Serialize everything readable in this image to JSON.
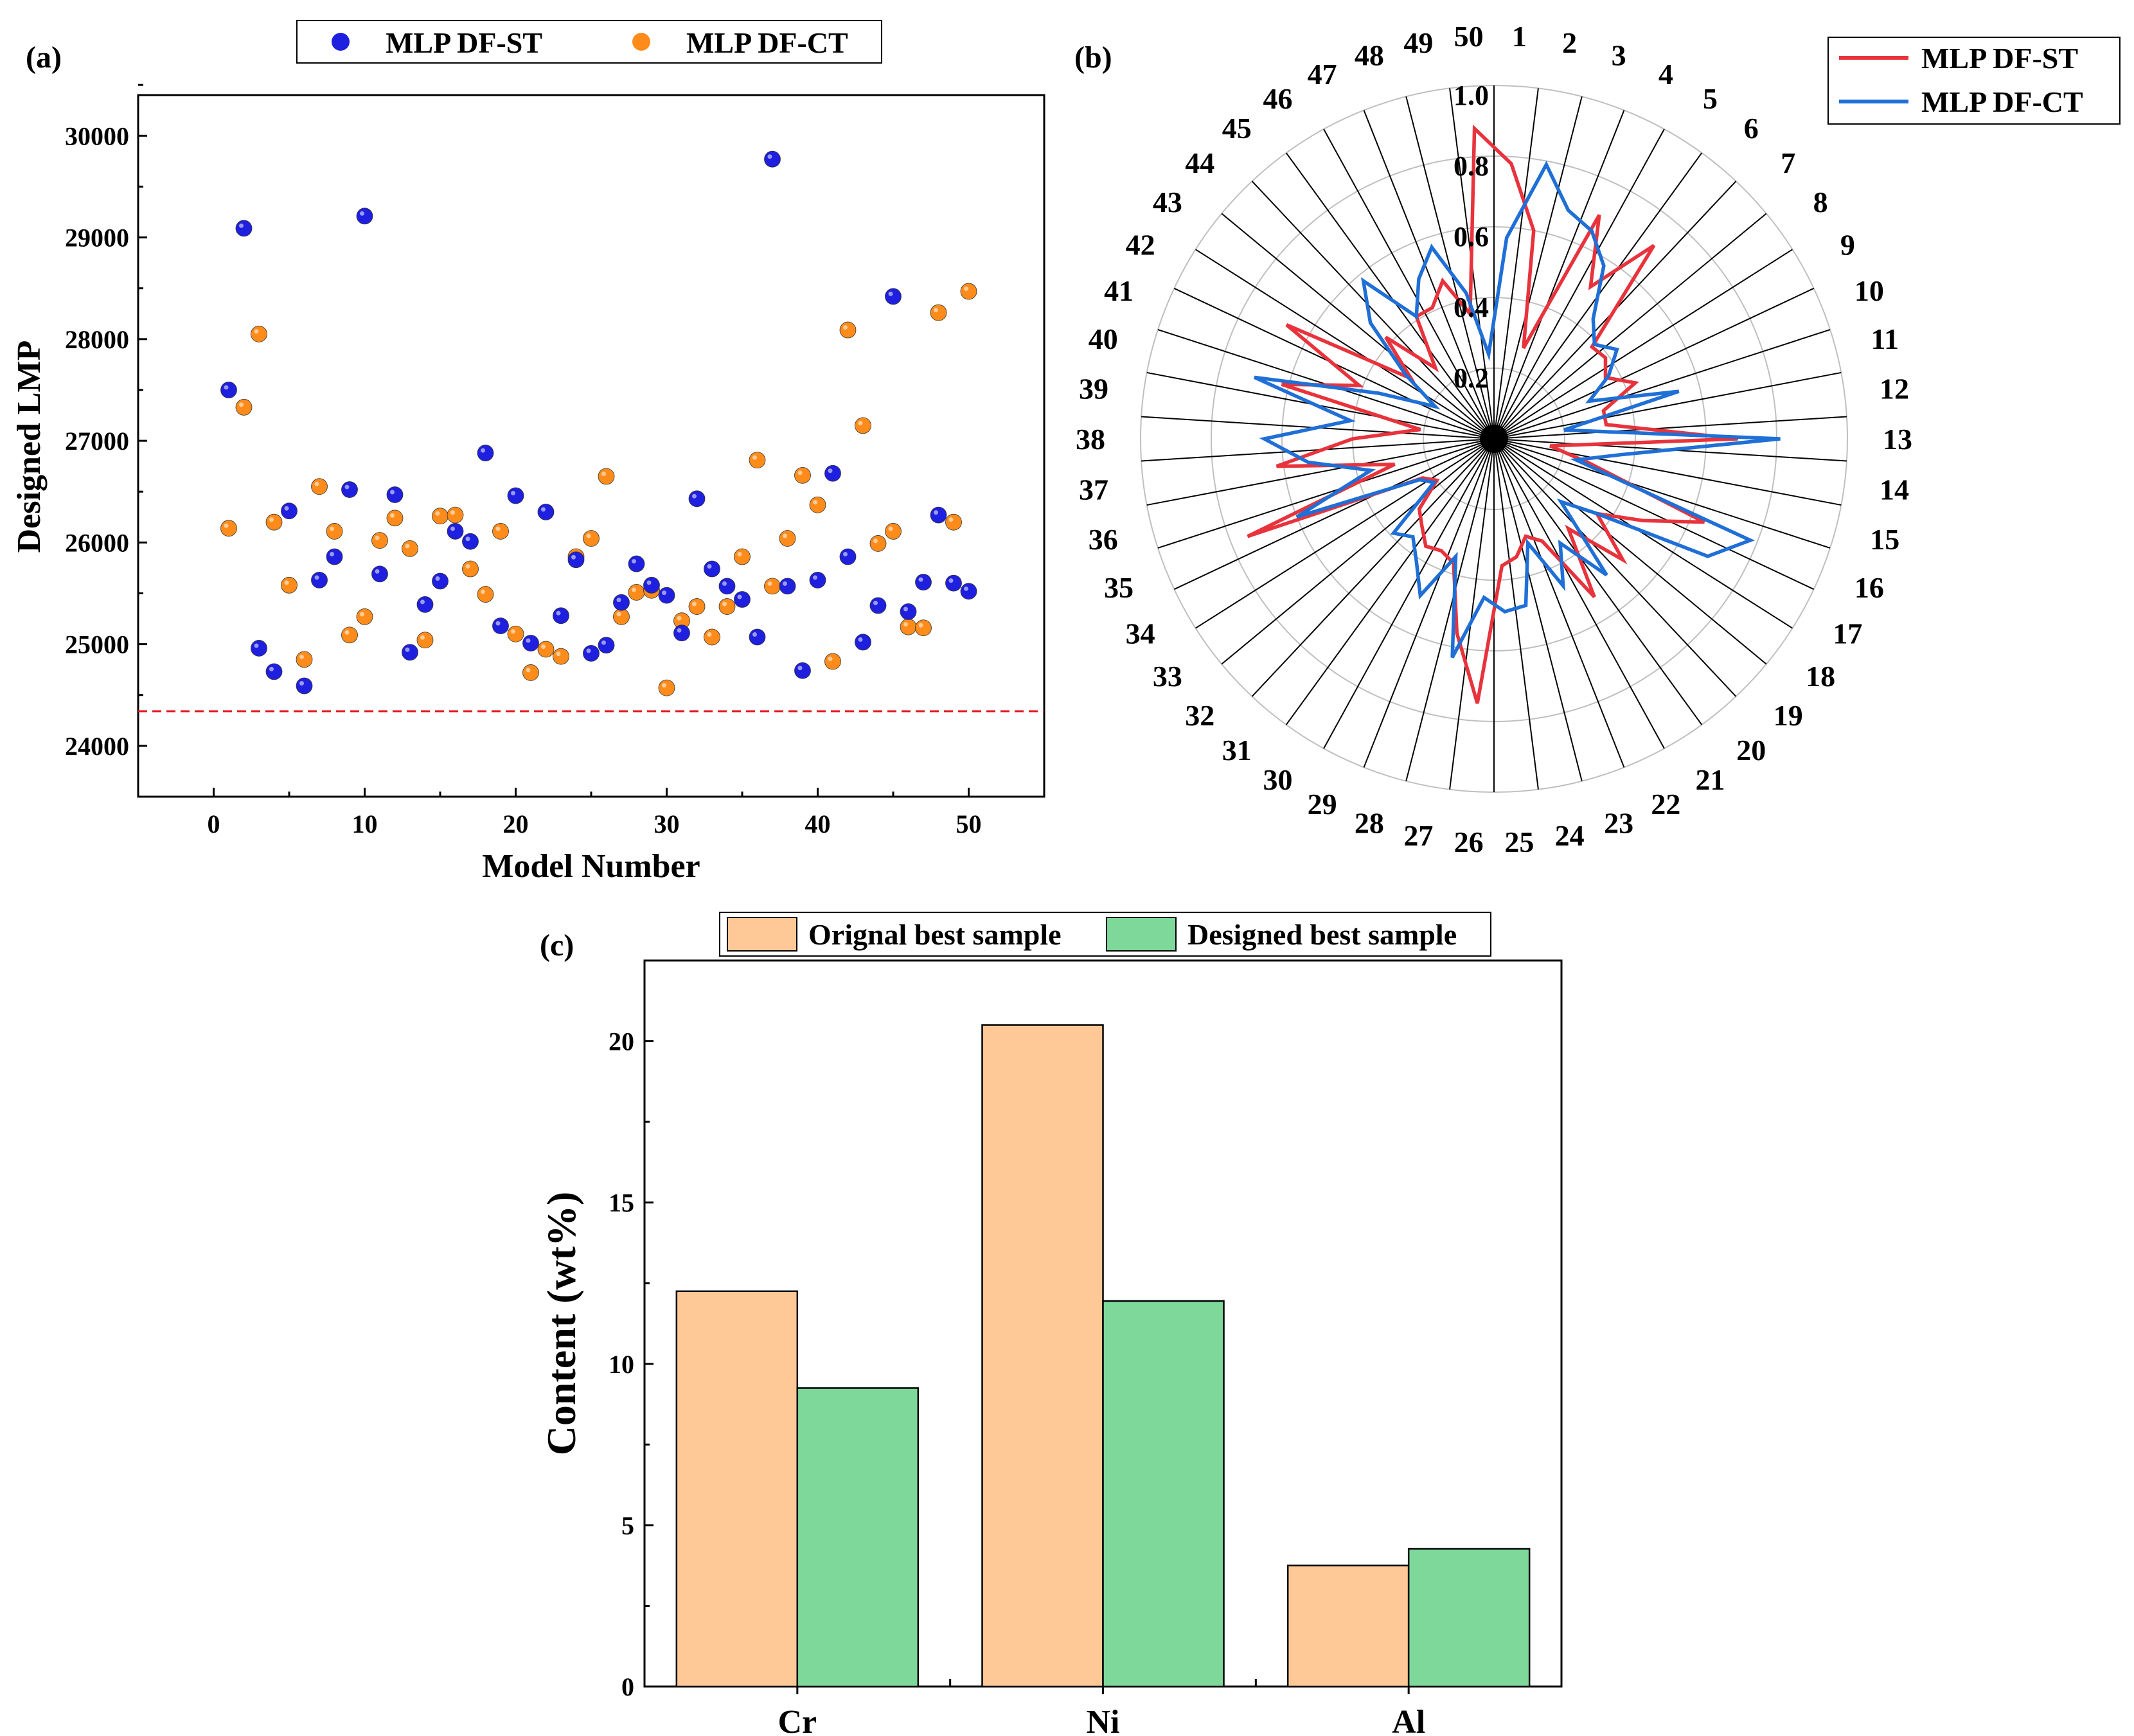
{
  "figure": {
    "colors": {
      "st_point": "#1f1fe0",
      "ct_point": "#ff8c1a",
      "st_line": "#e8333c",
      "ct_line": "#1f6fd6",
      "bar_original": "#ffc896",
      "bar_designed": "#7dd89a",
      "baseline": "#e0161c"
    }
  },
  "chart_data": [
    {
      "panel": "(a)",
      "type": "scatter",
      "xlabel": "Model Number",
      "ylabel": "Designed LMP",
      "xlim": [
        -5,
        55
      ],
      "ylim": [
        23500,
        30400
      ],
      "xticks": [
        0,
        10,
        20,
        30,
        40,
        50
      ],
      "yticks": [
        24000,
        25000,
        26000,
        27000,
        28000,
        29000,
        30000
      ],
      "ytick_labels": [
        "24000",
        "25000",
        "26000",
        "27000",
        "28000",
        "29000",
        "30000"
      ],
      "legend_position": "top-center",
      "reference_line": {
        "y": 24340,
        "style": "dashed"
      },
      "x": [
        1,
        2,
        3,
        4,
        5,
        6,
        7,
        8,
        9,
        10,
        11,
        12,
        13,
        14,
        15,
        16,
        17,
        18,
        19,
        20,
        21,
        22,
        23,
        24,
        25,
        26,
        27,
        28,
        29,
        30,
        31,
        32,
        33,
        34,
        35,
        36,
        37,
        38,
        39,
        40,
        41,
        42,
        43,
        44,
        45,
        46,
        47,
        48,
        49,
        50
      ],
      "series": [
        {
          "name": "MLP DF-ST",
          "values": [
            27500,
            29090,
            24960,
            24730,
            26310,
            24590,
            25630,
            25860,
            26520,
            29210,
            25690,
            26470,
            24920,
            25390,
            25620,
            26110,
            26010,
            26880,
            25180,
            26460,
            25010,
            26300,
            25280,
            25830,
            24910,
            24990,
            25410,
            25790,
            25580,
            25480,
            25110,
            26430,
            25740,
            25570,
            25440,
            25070,
            29770,
            25570,
            24740,
            25630,
            26680,
            25860,
            25020,
            25380,
            28420,
            25320,
            25610,
            26270,
            25600,
            25520
          ]
        },
        {
          "name": "MLP DF-CT",
          "values": [
            26140,
            27330,
            28050,
            26200,
            25580,
            24850,
            26550,
            26110,
            25090,
            25270,
            26020,
            26240,
            25940,
            25040,
            26260,
            26270,
            25740,
            25490,
            26110,
            25100,
            24720,
            24950,
            24880,
            25860,
            26040,
            26650,
            25270,
            25510,
            25530,
            24570,
            25230,
            25370,
            25070,
            25370,
            25860,
            26810,
            25570,
            26040,
            26660,
            26370,
            24830,
            28090,
            27150,
            25990,
            26110,
            25170,
            25160,
            28260,
            26200,
            28470
          ]
        }
      ]
    },
    {
      "panel": "(b)",
      "type": "radar",
      "categories": [
        "1",
        "2",
        "3",
        "4",
        "5",
        "6",
        "7",
        "8",
        "9",
        "10",
        "11",
        "12",
        "13",
        "14",
        "15",
        "16",
        "17",
        "18",
        "19",
        "20",
        "21",
        "22",
        "23",
        "24",
        "25",
        "26",
        "27",
        "28",
        "29",
        "30",
        "31",
        "32",
        "33",
        "34",
        "35",
        "36",
        "37",
        "38",
        "39",
        "40",
        "41",
        "42",
        "43",
        "44",
        "45",
        "46",
        "47",
        "48",
        "49",
        "50"
      ],
      "rlim": [
        0,
        1.0
      ],
      "rticks": [
        "0.2",
        "0.4",
        "0.6",
        "0.8",
        "1.0"
      ],
      "rtick_values": [
        0.2,
        0.4,
        0.6,
        0.8,
        1.0
      ],
      "legend_position": "top-right",
      "series": [
        {
          "name": "MLP DF-ST",
          "values": [
            0.78,
            0.6,
            0.27,
            0.7,
            0.51,
            0.71,
            0.38,
            0.39,
            0.36,
            0.43,
            0.32,
            0.32,
            0.69,
            0.16,
            0.28,
            0.64,
            0.48,
            0.36,
            0.5,
            0.33,
            0.53,
            0.32,
            0.29,
            0.34,
            0.36,
            0.75,
            0.56,
            0.37,
            0.35,
            0.36,
            0.32,
            0.29,
            0.2,
            0.23,
            0.75,
            0.29,
            0.62,
            0.4,
            0.21,
            0.62,
            0.41,
            0.67,
            0.29,
            0.42,
            0.26,
            0.41,
            0.41,
            0.47,
            0.36,
            0.88
          ]
        },
        {
          "name": "MLP DF-CT",
          "values": [
            0.57,
            0.79,
            0.68,
            0.65,
            0.58,
            0.44,
            0.39,
            0.43,
            0.37,
            0.29,
            0.54,
            0.2,
            0.81,
            0.36,
            0.24,
            0.78,
            0.69,
            0.36,
            0.26,
            0.5,
            0.35,
            0.46,
            0.31,
            0.48,
            0.49,
            0.45,
            0.63,
            0.35,
            0.49,
            0.41,
            0.36,
            0.39,
            0.21,
            0.24,
            0.6,
            0.36,
            0.53,
            0.65,
            0.41,
            0.7,
            0.35,
            0.19,
            0.31,
            0.48,
            0.58,
            0.41,
            0.5,
            0.57,
            0.42,
            0.24
          ]
        }
      ]
    },
    {
      "panel": "(c)",
      "type": "bar",
      "categories": [
        "Cr",
        "Ni",
        "Al"
      ],
      "xlabel": "",
      "ylabel": "Content (wt%)",
      "ylim": [
        0,
        22.5
      ],
      "yticks": [
        0,
        5,
        10,
        15,
        20
      ],
      "ytick_labels": [
        "0",
        "5",
        "10",
        "15",
        "20"
      ],
      "legend_position": "top-center",
      "series": [
        {
          "name": "Orignal best sample",
          "values": [
            12.25,
            20.5,
            3.75
          ]
        },
        {
          "name": "Designed best sample",
          "values": [
            9.25,
            11.95,
            4.27
          ]
        }
      ]
    }
  ]
}
